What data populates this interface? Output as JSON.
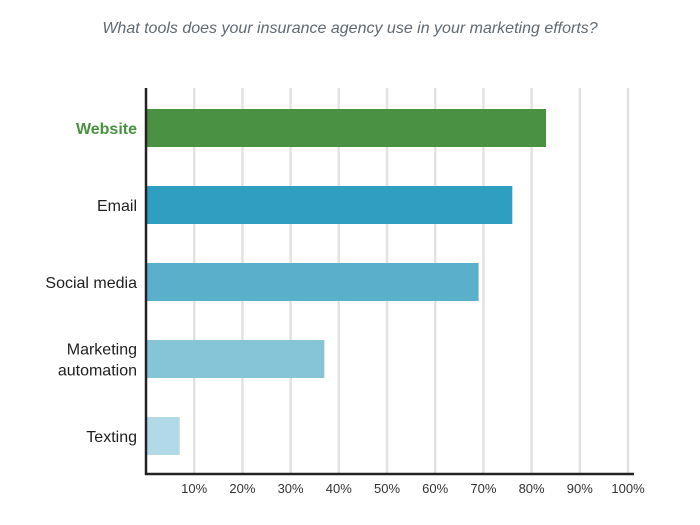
{
  "chart_data": {
    "type": "bar",
    "orientation": "horizontal",
    "title": "What tools does your insurance agency use in your marketing efforts?",
    "categories": [
      {
        "label_lines": [
          "Website"
        ],
        "value": 83,
        "color": "#4a9143",
        "highlight": true
      },
      {
        "label_lines": [
          "Email"
        ],
        "value": 76,
        "color": "#2f9fc1",
        "highlight": false
      },
      {
        "label_lines": [
          "Social media"
        ],
        "value": 69,
        "color": "#5aafca",
        "highlight": false
      },
      {
        "label_lines": [
          "Marketing",
          "automation"
        ],
        "value": 37,
        "color": "#86c4d8",
        "highlight": false
      },
      {
        "label_lines": [
          "Texting"
        ],
        "value": 7,
        "color": "#b2dae6",
        "highlight": false
      }
    ],
    "xticks": [
      "10%",
      "20%",
      "30%",
      "40%",
      "50%",
      "60%",
      "70%",
      "80%",
      "90%",
      "100%"
    ],
    "xlim": [
      0,
      100
    ],
    "xlabel": "",
    "ylabel": "",
    "grid": true,
    "gridline_color": "#e2e2e2",
    "axis_color": "#222222"
  }
}
